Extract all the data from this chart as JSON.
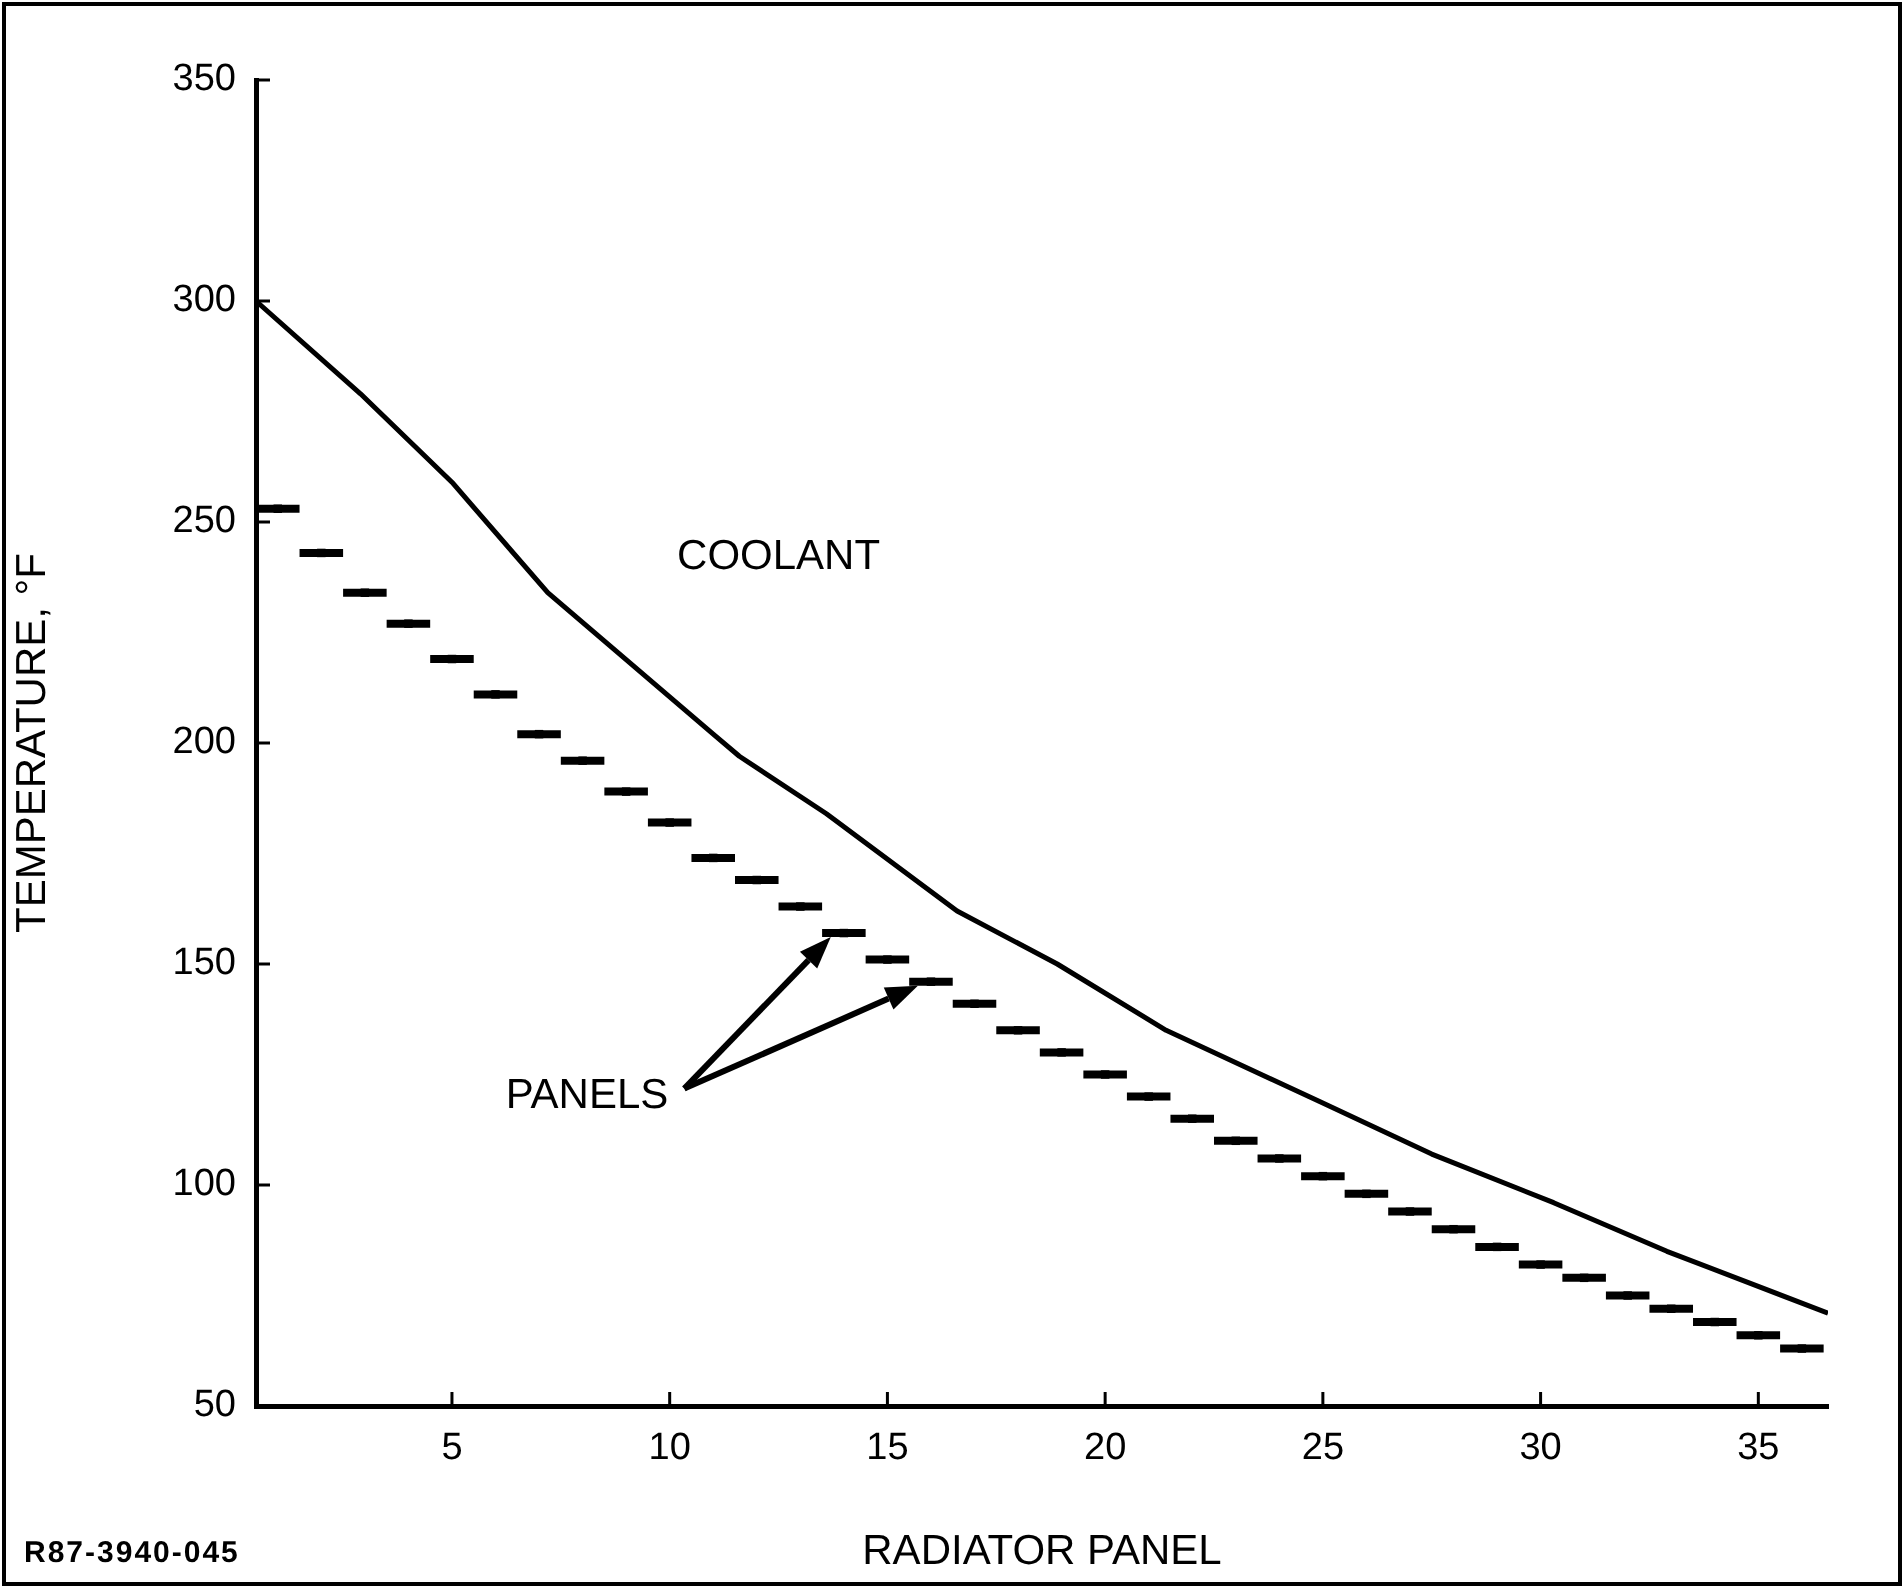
{
  "chart_data": {
    "type": "line",
    "xlabel": "RADIATOR PANEL",
    "ylabel": "TEMPERATURE, °F",
    "xlim": [
      0.5,
      36.6
    ],
    "xticks": [
      5,
      10,
      15,
      20,
      25,
      30,
      35
    ],
    "ylim": [
      50,
      350
    ],
    "yticks": [
      50,
      100,
      150,
      200,
      250,
      300,
      350
    ],
    "grid": false,
    "legend": false,
    "marker": "none",
    "series": [
      {
        "type": "line",
        "name": "COOLANT",
        "color": "#000000",
        "x": [
          0.5,
          2.9,
          5,
          7.2,
          11,
          11.6,
          13.6,
          16.6,
          18.9,
          21.4,
          24.9,
          27.5,
          30.3,
          32.9,
          36.6
        ],
        "values": [
          300,
          279,
          259,
          234,
          202,
          197,
          184,
          162,
          150,
          135,
          119,
          107,
          96,
          85,
          71
        ]
      },
      {
        "type": "scatter",
        "color": "#000000",
        "marker": "square",
        "x": [
          1,
          2,
          3,
          4,
          5,
          6,
          7,
          8,
          9,
          10,
          11,
          12,
          13,
          14,
          15,
          16,
          17,
          18,
          19,
          20,
          21,
          22,
          23,
          24,
          25,
          26,
          27,
          28,
          29,
          30,
          31,
          32,
          33,
          34,
          35,
          36
        ],
        "values": [
          253,
          243,
          234,
          227,
          219,
          211,
          202,
          196,
          189,
          182,
          174,
          169,
          163,
          157,
          151,
          146,
          141,
          135,
          130,
          125,
          120,
          115,
          110,
          106,
          102,
          98,
          94,
          90,
          86,
          82,
          79,
          75,
          72,
          69,
          66,
          63
        ],
        "xerrors": [
          0.5,
          0.5,
          0.5,
          0.5,
          0.5,
          0.5,
          0.5,
          0.5,
          0.5,
          0.5,
          0.5,
          0.5,
          0.5,
          0.5,
          0.5,
          0.5,
          0.5,
          0.5,
          0.5,
          0.5,
          0.5,
          0.5,
          0.5,
          0.5,
          0.5,
          0.5,
          0.5,
          0.5,
          0.5,
          0.5,
          0.5,
          0.5,
          0.5,
          0.5,
          0.5,
          0.5
        ]
      }
    ],
    "annotations": [
      "R87-3940-045",
      "PANELS"
    ]
  }
}
